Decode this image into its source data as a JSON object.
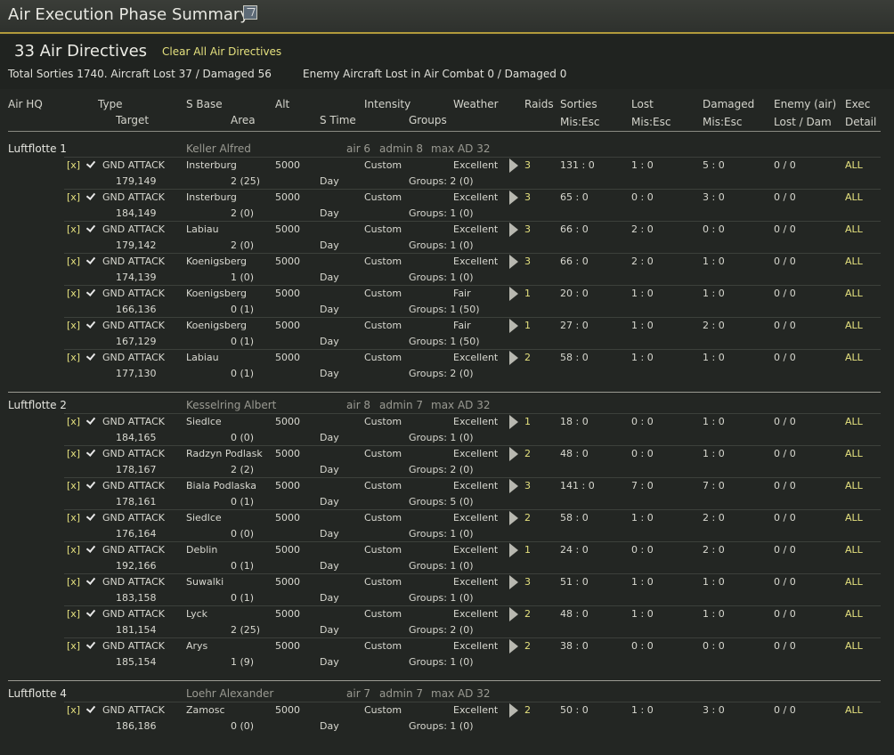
{
  "window": {
    "title": "Air Execution Phase Summary"
  },
  "summary": {
    "directive_count": "33 Air Directives",
    "clear_label": "Clear All Air Directives",
    "totals": "Total Sorties 1740. Aircraft Lost 37 / Damaged 56",
    "enemy": "Enemy Aircraft Lost in Air Combat 0 / Damaged 0"
  },
  "headers": {
    "air_hq": "Air HQ",
    "type": "Type",
    "target": "Target",
    "s_base": "S Base",
    "area": "Area",
    "alt": "Alt",
    "s_time": "S Time",
    "intensity": "Intensity",
    "groups": "Groups",
    "weather": "Weather",
    "raids": "Raids",
    "sorties": "Sorties",
    "sorties_sub": "Mis:Esc",
    "lost": "Lost",
    "lost_sub": "Mis:Esc",
    "damaged": "Damaged",
    "damaged_sub": "Mis:Esc",
    "enemy_air": "Enemy (air)",
    "enemy_air_sub": "Lost / Dam",
    "exec": "Exec",
    "exec_sub": "Detail"
  },
  "labels": {
    "remove": "[x]",
    "type": "GND ATTACK",
    "intensity": "Custom",
    "s_time": "Day",
    "exec": "ALL"
  },
  "sections": [
    {
      "name": "Luftflotte 1",
      "commander": "Keller Alfred",
      "air": "air 6",
      "admin": "admin 8",
      "max_ad": "max AD 32",
      "rows": [
        {
          "base": "Insterburg",
          "target": "179,149",
          "area": "2 (25)",
          "alt": "5000",
          "weather": "Excellent",
          "groups": "Groups: 2  (0)",
          "raids": "3",
          "sorties": "131 : 0",
          "lost": "1 : 0",
          "damaged": "5 : 0",
          "enemy": "0 / 0"
        },
        {
          "base": "Insterburg",
          "target": "184,149",
          "area": "2 (0)",
          "alt": "5000",
          "weather": "Excellent",
          "groups": "Groups: 1  (0)",
          "raids": "3",
          "sorties": "65 : 0",
          "lost": "0 : 0",
          "damaged": "3 : 0",
          "enemy": "0 / 0"
        },
        {
          "base": "Labiau",
          "target": "179,142",
          "area": "2 (0)",
          "alt": "5000",
          "weather": "Excellent",
          "groups": "Groups: 1  (0)",
          "raids": "3",
          "sorties": "66 : 0",
          "lost": "2 : 0",
          "damaged": "0 : 0",
          "enemy": "0 / 0"
        },
        {
          "base": "Koenigsberg",
          "target": "174,139",
          "area": "1 (0)",
          "alt": "5000",
          "weather": "Excellent",
          "groups": "Groups: 1  (0)",
          "raids": "3",
          "sorties": "66 : 0",
          "lost": "2 : 0",
          "damaged": "1 : 0",
          "enemy": "0 / 0"
        },
        {
          "base": "Koenigsberg",
          "target": "166,136",
          "area": "0 (1)",
          "alt": "5000",
          "weather": "Fair",
          "groups": "Groups: 1  (50)",
          "raids": "1",
          "sorties": "20 : 0",
          "lost": "1 : 0",
          "damaged": "1 : 0",
          "enemy": "0 / 0"
        },
        {
          "base": "Koenigsberg",
          "target": "167,129",
          "area": "0 (1)",
          "alt": "5000",
          "weather": "Fair",
          "groups": "Groups: 1  (50)",
          "raids": "1",
          "sorties": "27 : 0",
          "lost": "1 : 0",
          "damaged": "2 : 0",
          "enemy": "0 / 0"
        },
        {
          "base": "Labiau",
          "target": "177,130",
          "area": "0 (1)",
          "alt": "5000",
          "weather": "Excellent",
          "groups": "Groups: 2  (0)",
          "raids": "2",
          "sorties": "58 : 0",
          "lost": "1 : 0",
          "damaged": "1 : 0",
          "enemy": "0 / 0"
        }
      ]
    },
    {
      "name": "Luftflotte 2",
      "commander": "Kesselring Albert",
      "air": "air 8",
      "admin": "admin 7",
      "max_ad": "max AD 32",
      "rows": [
        {
          "base": "Siedlce",
          "target": "184,165",
          "area": "0 (0)",
          "alt": "5000",
          "weather": "Excellent",
          "groups": "Groups: 1  (0)",
          "raids": "1",
          "sorties": "18 : 0",
          "lost": "0 : 0",
          "damaged": "1 : 0",
          "enemy": "0 / 0"
        },
        {
          "base": "Radzyn Podlask",
          "target": "178,167",
          "area": "2 (2)",
          "alt": "5000",
          "weather": "Excellent",
          "groups": "Groups: 2  (0)",
          "raids": "2",
          "sorties": "48 : 0",
          "lost": "0 : 0",
          "damaged": "1 : 0",
          "enemy": "0 / 0"
        },
        {
          "base": "Biala Podlaska",
          "target": "178,161",
          "area": "0 (1)",
          "alt": "5000",
          "weather": "Excellent",
          "groups": "Groups: 5  (0)",
          "raids": "3",
          "sorties": "141 : 0",
          "lost": "7 : 0",
          "damaged": "7 : 0",
          "enemy": "0 / 0"
        },
        {
          "base": "Siedlce",
          "target": "176,164",
          "area": "0 (0)",
          "alt": "5000",
          "weather": "Excellent",
          "groups": "Groups: 1  (0)",
          "raids": "2",
          "sorties": "58 : 0",
          "lost": "1 : 0",
          "damaged": "2 : 0",
          "enemy": "0 / 0"
        },
        {
          "base": "Deblin",
          "target": "192,166",
          "area": "0 (1)",
          "alt": "5000",
          "weather": "Excellent",
          "groups": "Groups: 1  (0)",
          "raids": "1",
          "sorties": "24 : 0",
          "lost": "0 : 0",
          "damaged": "2 : 0",
          "enemy": "0 / 0"
        },
        {
          "base": "Suwalki",
          "target": "183,158",
          "area": "0 (1)",
          "alt": "5000",
          "weather": "Excellent",
          "groups": "Groups: 1  (0)",
          "raids": "3",
          "sorties": "51 : 0",
          "lost": "1 : 0",
          "damaged": "1 : 0",
          "enemy": "0 / 0"
        },
        {
          "base": "Lyck",
          "target": "181,154",
          "area": "2 (25)",
          "alt": "5000",
          "weather": "Excellent",
          "groups": "Groups: 2  (0)",
          "raids": "2",
          "sorties": "48 : 0",
          "lost": "1 : 0",
          "damaged": "1 : 0",
          "enemy": "0 / 0"
        },
        {
          "base": "Arys",
          "target": "185,154",
          "area": "1 (9)",
          "alt": "5000",
          "weather": "Excellent",
          "groups": "Groups: 1  (0)",
          "raids": "2",
          "sorties": "38 : 0",
          "lost": "0 : 0",
          "damaged": "0 : 0",
          "enemy": "0 / 0"
        }
      ]
    },
    {
      "name": "Luftflotte 4",
      "commander": "Loehr Alexander",
      "air": "air 7",
      "admin": "admin 7",
      "max_ad": "max AD 32",
      "rows": [
        {
          "base": "Zamosc",
          "target": "186,186",
          "area": "0 (0)",
          "alt": "5000",
          "weather": "Excellent",
          "groups": "Groups: 1  (0)",
          "raids": "2",
          "sorties": "50 : 0",
          "lost": "1 : 0",
          "damaged": "3 : 0",
          "enemy": "0 / 0"
        }
      ]
    }
  ]
}
